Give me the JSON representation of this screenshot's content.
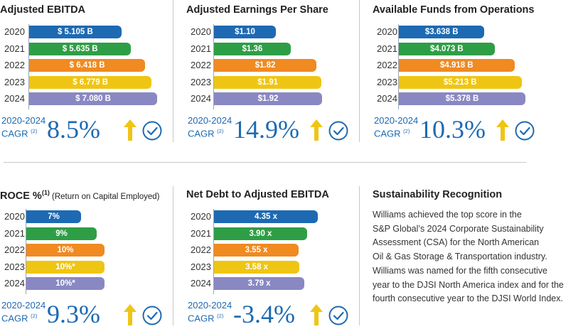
{
  "colors": {
    "y2020": "#1d6ab3",
    "y2021": "#2e9e46",
    "y2022": "#f08a21",
    "y2023": "#efc514",
    "y2024": "#8a88c2",
    "accent": "#1d6ab3",
    "arrow": "#efc514"
  },
  "panels": [
    {
      "title": "Adjusted EBITDA",
      "years": [
        "2020",
        "2021",
        "2022",
        "2023",
        "2024"
      ],
      "labels": [
        "$ 5.105 B",
        "$ 5.635 B",
        "$ 6.418 B",
        "$ 6.779 B",
        "$ 7.080 B"
      ],
      "values": [
        5.105,
        5.635,
        6.418,
        6.779,
        7.08
      ],
      "cagr_label": "2020-2024",
      "cagr_sub": "CAGR",
      "cagr_note": "(2)",
      "cagr_value": "8.5%"
    },
    {
      "title": "Adjusted Earnings Per Share",
      "years": [
        "2020",
        "2021",
        "2022",
        "2023",
        "2024"
      ],
      "labels": [
        "$1.10",
        "$1.36",
        "$1.82",
        "$1.91",
        "$1.92"
      ],
      "values": [
        1.1,
        1.36,
        1.82,
        1.91,
        1.92
      ],
      "cagr_label": "2020-2024",
      "cagr_sub": "CAGR",
      "cagr_note": "(2)",
      "cagr_value": "14.9%"
    },
    {
      "title": "Available Funds from Operations",
      "years": [
        "2020",
        "2021",
        "2022",
        "2023",
        "2024"
      ],
      "labels": [
        "$3.638 B",
        "$4.073 B",
        "$4.918 B",
        "$5.213 B",
        "$5.378 B"
      ],
      "values": [
        3.638,
        4.073,
        4.918,
        5.213,
        5.378
      ],
      "cagr_label": "2020-2024",
      "cagr_sub": "CAGR",
      "cagr_note": "(2)",
      "cagr_value": "10.3%"
    },
    {
      "title": "ROCE %",
      "title_note": "(1)",
      "title_sub": "(Return on Capital Employed)",
      "years": [
        "2020",
        "2021",
        "2022",
        "2023",
        "2024"
      ],
      "labels": [
        "7%",
        "9%",
        "10%",
        "10%*",
        "10%*"
      ],
      "values": [
        7,
        9,
        10,
        10,
        10
      ],
      "cagr_label": "2020-2024",
      "cagr_sub": "CAGR",
      "cagr_note": "(2)",
      "cagr_value": "9.3%"
    },
    {
      "title": "Net Debt to Adjusted EBITDA",
      "years": [
        "2020",
        "2021",
        "2022",
        "2023",
        "2024"
      ],
      "labels": [
        "4.35 x",
        "3.90 x",
        "3.55 x",
        "3.58 x",
        "3.79 x"
      ],
      "values": [
        4.35,
        3.9,
        3.55,
        3.58,
        3.79
      ],
      "cagr_label": "2020-2024",
      "cagr_sub": "CAGR",
      "cagr_note": "(2)",
      "cagr_value": "-3.4%"
    }
  ],
  "sustainability": {
    "title": "Sustainability Recognition",
    "lines": [
      "Williams achieved the top score in the",
      "S&P Global’s 2024 Corporate Sustainability",
      "Assessment (CSA) for the North American",
      "Oil & Gas Storage & Transportation industry.",
      "Williams was named for the fifth consecutive",
      "year to the DJSI North America index and for the",
      "fourth consecutive year to the DJSI World Index."
    ]
  },
  "chart_data": [
    {
      "type": "bar",
      "orientation": "horizontal",
      "title": "Adjusted EBITDA",
      "categories": [
        "2020",
        "2021",
        "2022",
        "2023",
        "2024"
      ],
      "values": [
        5.105,
        5.635,
        6.418,
        6.779,
        7.08
      ],
      "unit": "$ B",
      "data_labels": [
        "$ 5.105 B",
        "$ 5.635 B",
        "$ 6.418 B",
        "$ 6.779 B",
        "$ 7.080 B"
      ],
      "annotation": "2020-2024 CAGR (2) 8.5%"
    },
    {
      "type": "bar",
      "orientation": "horizontal",
      "title": "Adjusted Earnings Per Share",
      "categories": [
        "2020",
        "2021",
        "2022",
        "2023",
        "2024"
      ],
      "values": [
        1.1,
        1.36,
        1.82,
        1.91,
        1.92
      ],
      "unit": "$",
      "data_labels": [
        "$1.10",
        "$1.36",
        "$1.82",
        "$1.91",
        "$1.92"
      ],
      "annotation": "2020-2024 CAGR (2) 14.9%"
    },
    {
      "type": "bar",
      "orientation": "horizontal",
      "title": "Available Funds from Operations",
      "categories": [
        "2020",
        "2021",
        "2022",
        "2023",
        "2024"
      ],
      "values": [
        3.638,
        4.073,
        4.918,
        5.213,
        5.378
      ],
      "unit": "$ B",
      "data_labels": [
        "$3.638 B",
        "$4.073 B",
        "$4.918 B",
        "$5.213 B",
        "$5.378 B"
      ],
      "annotation": "2020-2024 CAGR (2) 10.3%"
    },
    {
      "type": "bar",
      "orientation": "horizontal",
      "title": "ROCE % (1) (Return on Capital Employed)",
      "categories": [
        "2020",
        "2021",
        "2022",
        "2023",
        "2024"
      ],
      "values": [
        7,
        9,
        10,
        10,
        10
      ],
      "unit": "%",
      "data_labels": [
        "7%",
        "9%",
        "10%",
        "10%*",
        "10%*"
      ],
      "annotation": "2020-2024 CAGR (2) 9.3%"
    },
    {
      "type": "bar",
      "orientation": "horizontal",
      "title": "Net Debt to Adjusted EBITDA",
      "categories": [
        "2020",
        "2021",
        "2022",
        "2023",
        "2024"
      ],
      "values": [
        4.35,
        3.9,
        3.55,
        3.58,
        3.79
      ],
      "unit": "x",
      "data_labels": [
        "4.35 x",
        "3.90 x",
        "3.55 x",
        "3.58 x",
        "3.79 x"
      ],
      "annotation": "2020-2024 CAGR (2) -3.4%"
    }
  ]
}
